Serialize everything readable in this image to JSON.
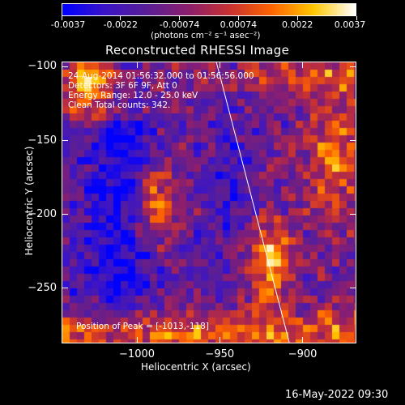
{
  "colorbar": {
    "tick_labels": [
      "-0.0037",
      "-0.0022",
      "-0.00074",
      "0.00074",
      "0.0022",
      "0.0037"
    ],
    "unit_label": "(photons cm⁻² s⁻¹ asec⁻²)",
    "colormap": [
      "#0000ff",
      "#3a14c8",
      "#5a1e96",
      "#8c1e6e",
      "#c83232",
      "#ff6400",
      "#ffc800",
      "#ffffff"
    ]
  },
  "plot": {
    "title": "Reconstructed RHESSI Image",
    "info_lines": [
      "24-Aug-2014 01:56:32.000 to 01:56:56.000",
      "Detectors: 3F 6F 9F, Att 0",
      "Energy Range: 12.0 - 25.0 keV",
      "Clean    Total counts: 342."
    ],
    "peak_label": "Position of Peak = [-1013,-118]"
  },
  "chart_data": {
    "type": "heatmap",
    "title": "Reconstructed RHESSI Image",
    "xlabel": "Heliocentric X (arcsec)",
    "ylabel": "Heliocentric Y (arcsec)",
    "xlim": [
      -1045,
      -868
    ],
    "ylim": [
      -287,
      -97
    ],
    "x_ticks": [
      -1000,
      -950,
      -900
    ],
    "y_ticks": [
      -100,
      -150,
      -200,
      -250
    ],
    "x_tick_labels": [
      "−1000",
      "−950",
      "−900"
    ],
    "y_tick_labels": [
      "−100",
      "−150",
      "−200",
      "−250"
    ],
    "value_range": [
      -0.0037,
      0.0037
    ],
    "limb_line": [
      [
        -952,
        -97
      ],
      [
        -908,
        -287
      ]
    ],
    "peak_position": [
      -1013,
      -118
    ]
  },
  "footer": {
    "timestamp": "16-May-2022 09:30"
  }
}
